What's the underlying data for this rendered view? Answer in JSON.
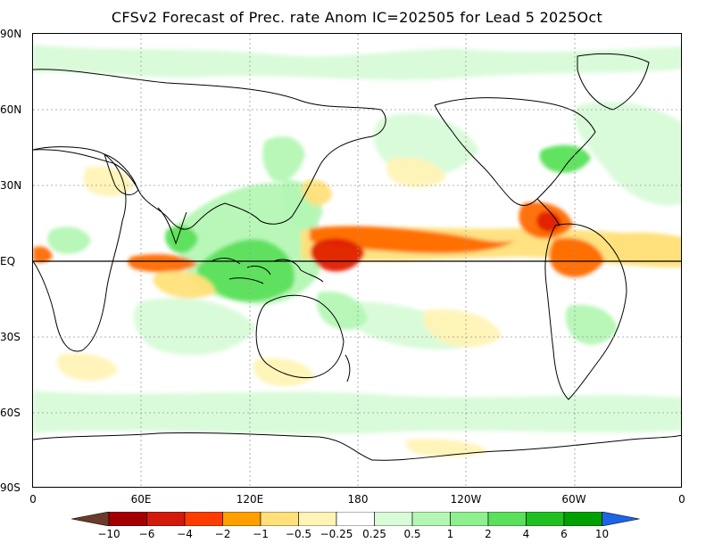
{
  "title": "CFSv2 Forecast of Prec. rate Anom IC=202505 for Lead 5 2025Oct",
  "y_axis_labels": [
    "90N",
    "60N",
    "30N",
    "EQ",
    "30S",
    "60S",
    "90S"
  ],
  "x_axis_labels": [
    "0",
    "60E",
    "120E",
    "180",
    "120W",
    "60W",
    "0"
  ],
  "colorbar": {
    "labels": [
      "-10",
      "-6",
      "-4",
      "-2",
      "-1",
      "-0.5",
      "-0.25",
      "0.25",
      "0.5",
      "1",
      "2",
      "4",
      "6",
      "10"
    ],
    "colors": [
      "#6b3a2a",
      "#a50000",
      "#d21a0a",
      "#ff3c00",
      "#ffa000",
      "#ffe07a",
      "#fff3b5",
      "#ffffff",
      "#d8fbd8",
      "#b4f7b4",
      "#8ff08f",
      "#5ae05a",
      "#20c020",
      "#00a000",
      "#1e64e6"
    ]
  },
  "map_colors": {
    "land_outline": "#000000",
    "equator": "#000000",
    "wet_light": "#d8fbd8",
    "wet_mid": "#b4f7b4",
    "wet_strong": "#5ae05a",
    "dry_light": "#fff3b5",
    "dry_mid": "#ffe07a",
    "dry_strong": "#ffa000",
    "dry_very": "#ff6a00",
    "dry_extreme": "#e02000"
  }
}
